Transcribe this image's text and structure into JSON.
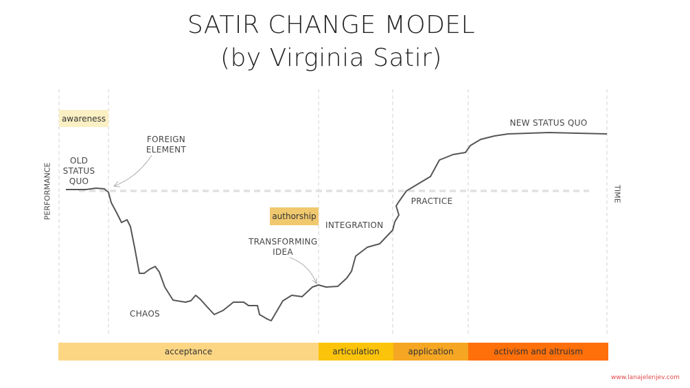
{
  "title_line1": "SATIR CHANGE MODEL",
  "title_line2": "(by Virginia Satir)",
  "axes": {
    "y_label": "PERFORMANCE",
    "x_label": "TIME"
  },
  "annotations": {
    "old_status_quo": "OLD STATUS QUO",
    "foreign_element": "FOREIGN ELEMENT",
    "chaos": "CHAOS",
    "transforming_idea": "TRANSFORMING IDEA",
    "integration": "INTEGRATION",
    "practice": "PRACTICE",
    "new_status_quo": "NEW STATUS QUO"
  },
  "tags": {
    "awareness": "awareness",
    "authorship": "authorship"
  },
  "stages": [
    {
      "label": "acceptance",
      "color": "#fdd684"
    },
    {
      "label": "articulation",
      "color": "#fbc30a"
    },
    {
      "label": "application",
      "color": "#f5a623"
    },
    {
      "label": "activism and altruism",
      "color": "#ff6f0a"
    }
  ],
  "tag_colors": {
    "awareness": "#fbf0c4",
    "authorship": "#f0c86e"
  },
  "credit": "www.lanajelenjev.com"
}
